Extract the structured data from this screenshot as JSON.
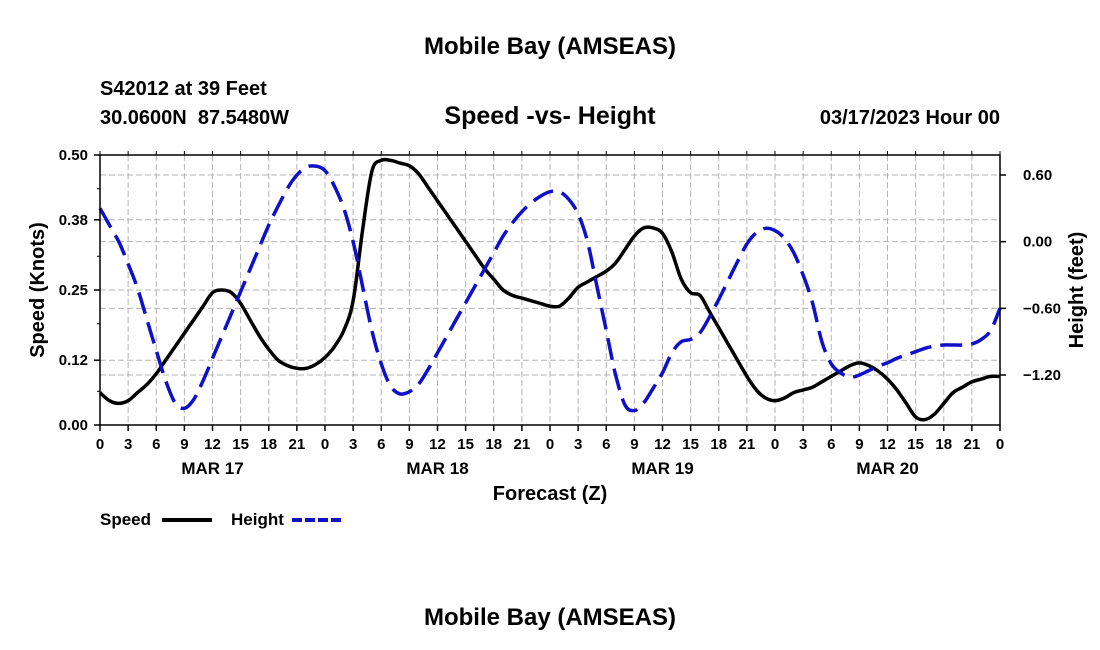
{
  "header": {
    "title": "Mobile Bay (AMSEAS)",
    "station": "S42012 at 39 Feet",
    "coords": "30.0600N  87.5480W",
    "subtitle": "Speed -vs- Height",
    "date": "03/17/2023 Hour 00"
  },
  "footer": {
    "title": "Mobile Bay (AMSEAS)"
  },
  "colors": {
    "speed": "#000000",
    "height": "#1010c8",
    "grid": "#b4b4b4"
  },
  "chart_data": {
    "type": "line",
    "title": "Speed -vs- Height",
    "xlabel": "Forecast (Z)",
    "ylabel": "Speed (Knots)",
    "y2label": "Height (feet)",
    "xlim": [
      0,
      96
    ],
    "ylim": [
      0,
      0.5
    ],
    "y2lim": [
      -1.65,
      0.78
    ],
    "x_ticks": [
      0,
      3,
      6,
      9,
      12,
      15,
      18,
      21,
      24,
      27,
      30,
      33,
      36,
      39,
      42,
      45,
      48,
      51,
      54,
      57,
      60,
      63,
      66,
      69,
      72,
      75,
      78,
      81,
      84,
      87,
      90,
      93,
      96
    ],
    "x_tick_labels": [
      "0",
      "3",
      "6",
      "9",
      "12",
      "15",
      "18",
      "21",
      "0",
      "3",
      "6",
      "9",
      "12",
      "15",
      "18",
      "21",
      "0",
      "3",
      "6",
      "9",
      "12",
      "15",
      "18",
      "21",
      "0",
      "3",
      "6",
      "9",
      "12",
      "15",
      "18",
      "21",
      "0"
    ],
    "day_labels": [
      {
        "x": 12,
        "label": "MAR 17"
      },
      {
        "x": 36,
        "label": "MAR 18"
      },
      {
        "x": 60,
        "label": "MAR 19"
      },
      {
        "x": 84,
        "label": "MAR 20"
      }
    ],
    "y_ticks": [
      0.0,
      0.12,
      0.25,
      0.38,
      0.5
    ],
    "y_tick_labels": [
      "0.00",
      "0.12",
      "0.25",
      "0.38",
      "0.50"
    ],
    "y2_ticks": [
      -1.2,
      -0.6,
      0.0,
      0.6
    ],
    "y2_tick_labels": [
      "−1.20",
      "−0.60",
      "0.00",
      "0.60"
    ],
    "series": [
      {
        "name": "Speed",
        "axis": "left",
        "style": "solid",
        "x": [
          0,
          1,
          2,
          3,
          4,
          5,
          6,
          7,
          8,
          9,
          10,
          11,
          12,
          13,
          14,
          15,
          16,
          17,
          18,
          19,
          20,
          21,
          22,
          23,
          24,
          25,
          26,
          27,
          28,
          29,
          30,
          31,
          32,
          33,
          34,
          35,
          36,
          37,
          38,
          39,
          40,
          41,
          42,
          43,
          44,
          45,
          46,
          47,
          48,
          49,
          50,
          51,
          52,
          53,
          54,
          55,
          56,
          57,
          58,
          59,
          60,
          61,
          62,
          63,
          64,
          65,
          66,
          67,
          68,
          69,
          70,
          71,
          72,
          73,
          74,
          75,
          76,
          77,
          78,
          79,
          80,
          81,
          82,
          83,
          84,
          85,
          86,
          87,
          88,
          89,
          90,
          91,
          92,
          93,
          94,
          95,
          96
        ],
        "values": [
          0.06,
          0.045,
          0.04,
          0.045,
          0.06,
          0.075,
          0.095,
          0.12,
          0.145,
          0.17,
          0.195,
          0.22,
          0.245,
          0.25,
          0.245,
          0.225,
          0.195,
          0.165,
          0.14,
          0.12,
          0.11,
          0.105,
          0.105,
          0.112,
          0.125,
          0.145,
          0.175,
          0.23,
          0.36,
          0.47,
          0.49,
          0.49,
          0.485,
          0.48,
          0.465,
          0.44,
          0.415,
          0.39,
          0.365,
          0.34,
          0.315,
          0.29,
          0.27,
          0.25,
          0.24,
          0.235,
          0.23,
          0.225,
          0.22,
          0.22,
          0.235,
          0.255,
          0.265,
          0.275,
          0.285,
          0.3,
          0.325,
          0.35,
          0.365,
          0.365,
          0.355,
          0.32,
          0.27,
          0.245,
          0.24,
          0.21,
          0.18,
          0.15,
          0.12,
          0.09,
          0.065,
          0.05,
          0.045,
          0.05,
          0.06,
          0.065,
          0.07,
          0.08,
          0.09,
          0.1,
          0.11,
          0.115,
          0.11,
          0.1,
          0.085,
          0.065,
          0.04,
          0.015,
          0.01,
          0.02,
          0.04,
          0.06,
          0.07,
          0.08,
          0.085,
          0.09,
          0.09
        ]
      },
      {
        "name": "Height",
        "axis": "right",
        "style": "dashed",
        "x": [
          0,
          1,
          2,
          3,
          4,
          5,
          6,
          7,
          8,
          9,
          10,
          11,
          12,
          13,
          14,
          15,
          16,
          17,
          18,
          19,
          20,
          21,
          22,
          23,
          24,
          25,
          26,
          27,
          28,
          29,
          30,
          31,
          32,
          33,
          34,
          35,
          36,
          37,
          38,
          39,
          40,
          41,
          42,
          43,
          44,
          45,
          46,
          47,
          48,
          49,
          50,
          51,
          52,
          53,
          54,
          55,
          56,
          57,
          58,
          59,
          60,
          61,
          62,
          63,
          64,
          65,
          66,
          67,
          68,
          69,
          70,
          71,
          72,
          73,
          74,
          75,
          76,
          77,
          78,
          79,
          80,
          81,
          82,
          83,
          84,
          85,
          86,
          87,
          88,
          89,
          90,
          91,
          92,
          93,
          94,
          95,
          96
        ],
        "values": [
          0.3,
          0.15,
          0.0,
          -0.2,
          -0.42,
          -0.7,
          -0.98,
          -1.25,
          -1.45,
          -1.5,
          -1.42,
          -1.25,
          -1.05,
          -0.85,
          -0.65,
          -0.45,
          -0.25,
          -0.05,
          0.15,
          0.32,
          0.48,
          0.6,
          0.67,
          0.68,
          0.64,
          0.5,
          0.3,
          0.0,
          -0.4,
          -0.8,
          -1.1,
          -1.3,
          -1.37,
          -1.35,
          -1.28,
          -1.15,
          -1.0,
          -0.85,
          -0.7,
          -0.55,
          -0.4,
          -0.25,
          -0.1,
          0.05,
          0.17,
          0.27,
          0.35,
          0.41,
          0.45,
          0.45,
          0.38,
          0.25,
          0.0,
          -0.4,
          -0.8,
          -1.2,
          -1.47,
          -1.52,
          -1.45,
          -1.32,
          -1.18,
          -1.0,
          -0.9,
          -0.88,
          -0.82,
          -0.68,
          -0.52,
          -0.35,
          -0.18,
          -0.02,
          0.08,
          0.12,
          0.1,
          0.03,
          -0.1,
          -0.3,
          -0.55,
          -0.9,
          -1.1,
          -1.18,
          -1.22,
          -1.2,
          -1.16,
          -1.12,
          -1.09,
          -1.05,
          -1.02,
          -0.99,
          -0.96,
          -0.94,
          -0.93,
          -0.93,
          -0.93,
          -0.92,
          -0.88,
          -0.8,
          -0.6
        ]
      }
    ],
    "legend": [
      "Speed",
      "Height"
    ]
  }
}
